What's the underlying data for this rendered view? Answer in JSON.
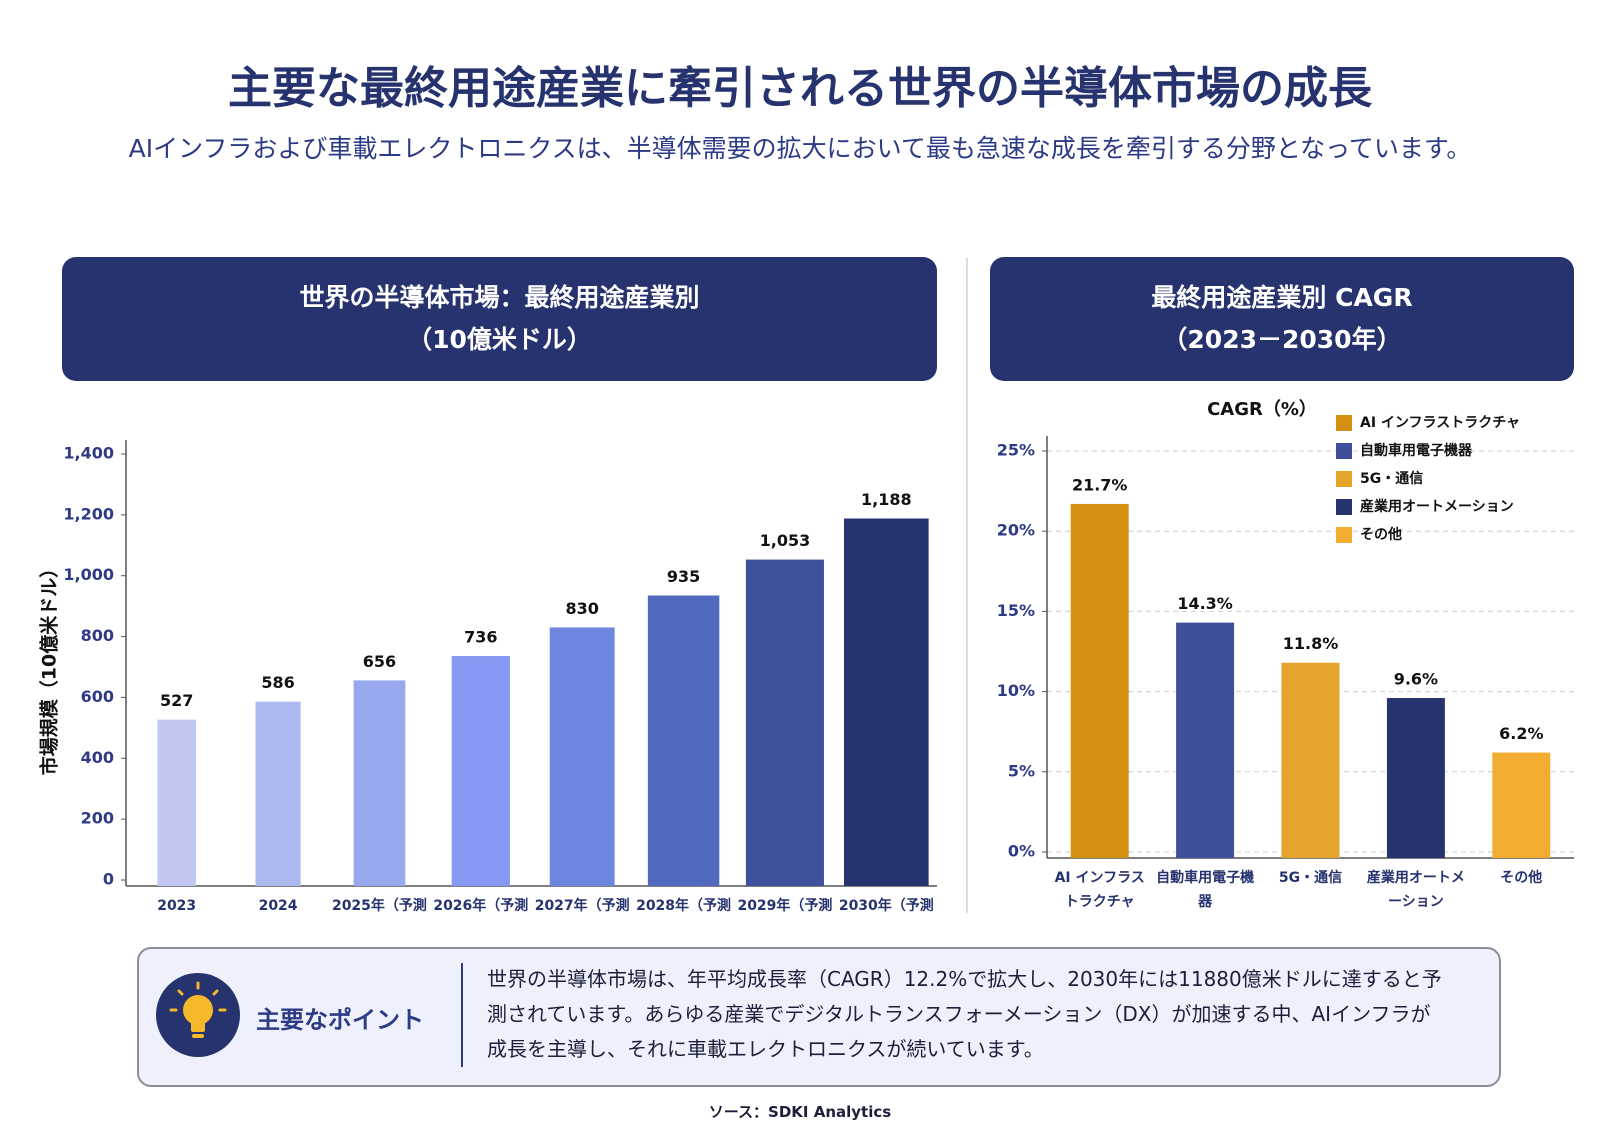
{
  "header": {
    "title": "主要な最終用途産業に牽引される世界の半導体市場の成長",
    "subtitle": "AIインフラおよび車載エレクトロニクスは、半導体需要の拡大において最も急速な成長を牽引する分野となっています。"
  },
  "chart_data": [
    {
      "type": "bar",
      "title": "世界の半導体市場：最終用途産業別",
      "subtitle": "（10億米ドル）",
      "y_label": "市場規模（10億米ドル）",
      "categories": [
        "2023",
        "2024",
        "2025年（予測",
        "2026年（予測",
        "2027年（予測",
        "2028年（予測",
        "2029年（予測",
        "2030年（予測"
      ],
      "values": [
        527,
        586,
        656,
        736,
        830,
        935,
        1053,
        1188
      ],
      "value_labels": [
        "527",
        "586",
        "656",
        "736",
        "830",
        "935",
        "1,053",
        "1,188"
      ],
      "colors": [
        "#c0c8f2",
        "#abb9ee",
        "#97a8ee",
        "#8599f2",
        "#6f86e0",
        "#5269c0",
        "#3d519c",
        "#263470"
      ],
      "ylim": [
        0,
        1400
      ],
      "yticks": [
        0,
        200,
        400,
        600,
        800,
        {
          "value": 1000,
          "label": "1,000"
        },
        {
          "value": 1200,
          "label": "1,200"
        },
        {
          "value": 1400,
          "label": "1,400"
        }
      ],
      "grid": false
    },
    {
      "type": "bar",
      "title": "最終用途産業別 CAGR",
      "subtitle": "（2023－2030年）",
      "y_label": "CAGR（%）",
      "categories": [
        "AI インフラストラクチャ",
        "自動車用電子機器",
        "5G・通信",
        "産業用オートメーション",
        "その他"
      ],
      "values": [
        21.7,
        14.3,
        11.8,
        9.6,
        6.2
      ],
      "value_labels": [
        "21.7%",
        "14.3%",
        "11.8%",
        "9.6%",
        "6.2%"
      ],
      "colors": [
        "#d48f10",
        "#3f4f9a",
        "#e4a32a",
        "#27336e",
        "#f2ad30"
      ],
      "ylim": [
        0,
        25
      ],
      "yticks": [
        {
          "value": 0,
          "label": "0%"
        },
        {
          "value": 5,
          "label": "5%"
        },
        {
          "value": 10,
          "label": "10%"
        },
        {
          "value": 15,
          "label": "15%"
        },
        {
          "value": 20,
          "label": "20%"
        },
        {
          "value": 25,
          "label": "25%"
        }
      ],
      "grid": true,
      "legend": "upper right"
    }
  ],
  "key_point": {
    "label": "主要なポイント",
    "text": "世界の半導体市場は、年平均成長率（CAGR）12.2%で拡大し、2030年には11880億米ドルに達すると予測されています。あらゆる産業でデジタルトランスフォーメーション（DX）が加速する中、AIインフラが成長を主導し、それに車載エレクトロニクスが続いています。"
  },
  "source": "ソース：SDKI Analytics"
}
